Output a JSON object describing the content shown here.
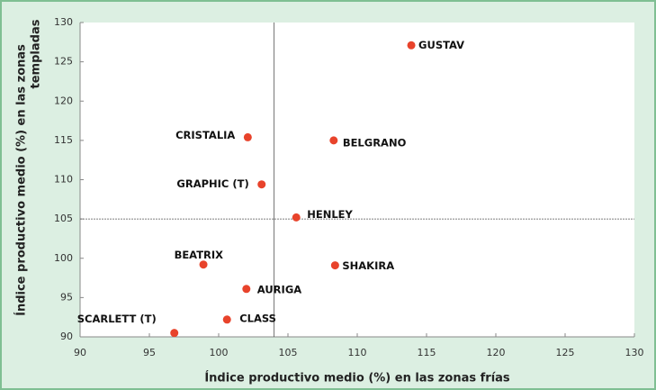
{
  "chart_data": {
    "type": "scatter",
    "xlabel": "Índice productivo medio (%) en las zonas frías",
    "ylabel": [
      "Índice productivo medio (%) en las zonas",
      "templadas"
    ],
    "labels": [
      "GUSTAV",
      "CRISTALIA",
      "BELGRANO",
      "GRAPHIC (T)",
      "HENLEY",
      "BEATRIX",
      "SHAKIRA",
      "AURIGA",
      "CLASS",
      "SCARLETT (T)"
    ],
    "x": [
      113.9,
      102.1,
      108.3,
      103.1,
      105.6,
      98.9,
      108.4,
      102.0,
      100.6,
      96.8
    ],
    "y": [
      127.1,
      115.4,
      115.0,
      109.4,
      105.2,
      99.2,
      99.1,
      96.1,
      92.2,
      90.5
    ],
    "color": "#e8432b",
    "xlim": [
      90,
      130
    ],
    "ylim": [
      90,
      130
    ],
    "xticks": [
      90,
      95,
      100,
      105,
      110,
      115,
      120,
      125,
      130
    ],
    "yticks": [
      90,
      95,
      100,
      105,
      110,
      115,
      120,
      125,
      130
    ],
    "reference_lines": {
      "x": 104,
      "y": 105
    },
    "grid": false
  }
}
